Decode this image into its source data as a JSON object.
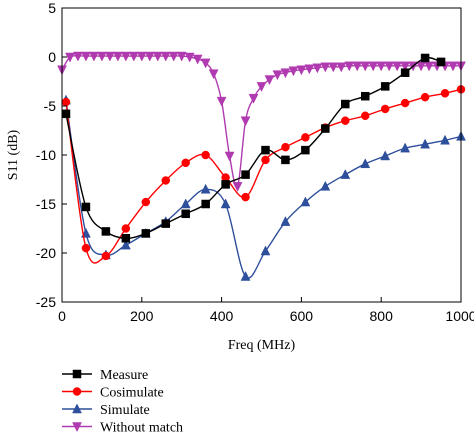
{
  "chart_data": {
    "type": "line",
    "title": "",
    "xlabel": "Freq (MHz)",
    "ylabel": "S11 (dB)",
    "xlim": [
      0,
      1000
    ],
    "ylim": [
      -25,
      5
    ],
    "xticks": [
      "0",
      "200",
      "400",
      "600",
      "800",
      "1000"
    ],
    "yticks": [
      "5",
      "0",
      "-5",
      "-10",
      "-15",
      "-20",
      "-25"
    ],
    "grid": false,
    "legend_position": "below",
    "series": [
      {
        "name": "Measure",
        "color": "#000000",
        "marker": "square",
        "x": [
          10,
          60,
          110,
          160,
          210,
          260,
          310,
          360,
          410,
          460,
          510,
          560,
          610,
          660,
          710,
          760,
          810,
          860,
          910,
          950
        ],
        "y": [
          -5.8,
          -15.3,
          -17.8,
          -18.5,
          -18.0,
          -17.0,
          -16.0,
          -15.0,
          -13.0,
          -12.0,
          -9.5,
          -10.5,
          -9.5,
          -7.3,
          -4.8,
          -4.0,
          -3.0,
          -1.6,
          -0.1,
          -0.5
        ]
      },
      {
        "name": "Cosimulate",
        "color": "#ff0000",
        "marker": "circle",
        "x": [
          10,
          60,
          110,
          160,
          210,
          260,
          310,
          360,
          410,
          460,
          510,
          560,
          610,
          660,
          710,
          760,
          810,
          860,
          910,
          960,
          1000
        ],
        "y": [
          -4.6,
          -19.5,
          -20.3,
          -17.5,
          -14.8,
          -12.6,
          -10.8,
          -10.0,
          -12.3,
          -14.3,
          -10.5,
          -9.2,
          -8.2,
          -7.2,
          -6.5,
          -6.0,
          -5.3,
          -4.7,
          -4.1,
          -3.7,
          -3.3
        ]
      },
      {
        "name": "Simulate",
        "color": "#2e4f9c",
        "marker": "triangle-up",
        "x": [
          10,
          60,
          110,
          160,
          210,
          260,
          310,
          360,
          410,
          460,
          510,
          560,
          610,
          660,
          710,
          760,
          810,
          860,
          910,
          960,
          1000
        ],
        "y": [
          -4.4,
          -18.0,
          -20.2,
          -19.2,
          -18.0,
          -16.8,
          -15.0,
          -13.5,
          -15.0,
          -22.4,
          -19.8,
          -16.8,
          -14.8,
          -13.2,
          -12.0,
          -10.9,
          -10.1,
          -9.3,
          -8.9,
          -8.5,
          -8.1
        ]
      },
      {
        "name": "Without match",
        "color": "#b03ab0",
        "marker": "triangle-down",
        "x": [
          0,
          20,
          40,
          60,
          80,
          100,
          120,
          140,
          160,
          180,
          200,
          220,
          240,
          260,
          280,
          300,
          320,
          340,
          360,
          380,
          400,
          420,
          440,
          460,
          480,
          500,
          520,
          540,
          560,
          580,
          600,
          620,
          640,
          660,
          680,
          700,
          720,
          740,
          760,
          780,
          800,
          820,
          840,
          860,
          880,
          900,
          920,
          940,
          960,
          980,
          1000
        ],
        "y": [
          -1.3,
          0.0,
          0.1,
          0.1,
          0.1,
          0.1,
          0.1,
          0.1,
          0.1,
          0.1,
          0.1,
          0.1,
          0.1,
          0.1,
          0.1,
          0.1,
          0.0,
          -0.2,
          -0.6,
          -1.7,
          -4.5,
          -10.1,
          -13.2,
          -6.5,
          -4.2,
          -3.0,
          -2.3,
          -1.8,
          -1.6,
          -1.4,
          -1.3,
          -1.2,
          -1.1,
          -1.0,
          -1.0,
          -1.0,
          -0.9,
          -0.9,
          -0.9,
          -0.9,
          -0.9,
          -0.9,
          -0.9,
          -0.9,
          -0.9,
          -0.9,
          -0.9,
          -0.9,
          -0.9,
          -0.9,
          -0.9
        ]
      }
    ]
  }
}
